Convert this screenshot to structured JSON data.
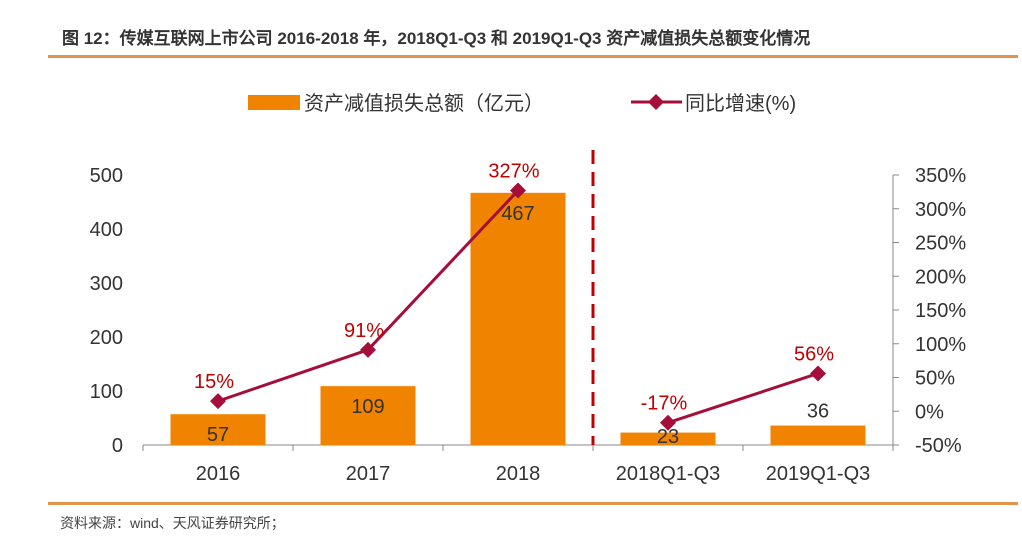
{
  "title": "图 12：传媒互联网上市公司 2016-2018 年，2018Q1-Q3 和 2019Q1-Q3 资产减值损失总额变化情况",
  "source": "资料来源：wind、天风证券研究所；",
  "colors": {
    "bar": "#f08300",
    "line": "#a50d3a",
    "label_red": "#c00000",
    "divider": "#c00000",
    "rule": "#e0944a"
  },
  "chart_data": {
    "type": "bar+line",
    "categories": [
      "2016",
      "2017",
      "2018",
      "2018Q1-Q3",
      "2019Q1-Q3"
    ],
    "series": [
      {
        "name": "资产减值损失总额（亿元）",
        "type": "bar",
        "axis": "left",
        "values": [
          57,
          109,
          467,
          23,
          36
        ],
        "labels": [
          "57",
          "109",
          "467",
          "23",
          "36"
        ]
      },
      {
        "name": "同比增速(%)",
        "type": "line",
        "axis": "right",
        "values": [
          15,
          91,
          327,
          -17,
          56
        ],
        "labels": [
          "15%",
          "91%",
          "327%",
          "-17%",
          "56%"
        ],
        "segments": [
          [
            0,
            1,
            2
          ],
          [
            3,
            4
          ]
        ]
      }
    ],
    "left_axis": {
      "ylim": [
        0,
        500
      ],
      "ticks": [
        "0",
        "100",
        "200",
        "300",
        "400",
        "500"
      ],
      "tick_values": [
        0,
        100,
        200,
        300,
        400,
        500
      ]
    },
    "right_axis": {
      "ylim": [
        -50,
        350
      ],
      "ticks": [
        "-50%",
        "0%",
        "50%",
        "100%",
        "150%",
        "200%",
        "250%",
        "300%",
        "350%"
      ],
      "tick_values": [
        -50,
        0,
        50,
        100,
        150,
        200,
        250,
        300,
        350
      ]
    },
    "legend": {
      "position": "top",
      "items": [
        "资产减值损失总额（亿元）",
        "同比增速(%)"
      ]
    },
    "divider_after_category": 2,
    "grid": false
  }
}
